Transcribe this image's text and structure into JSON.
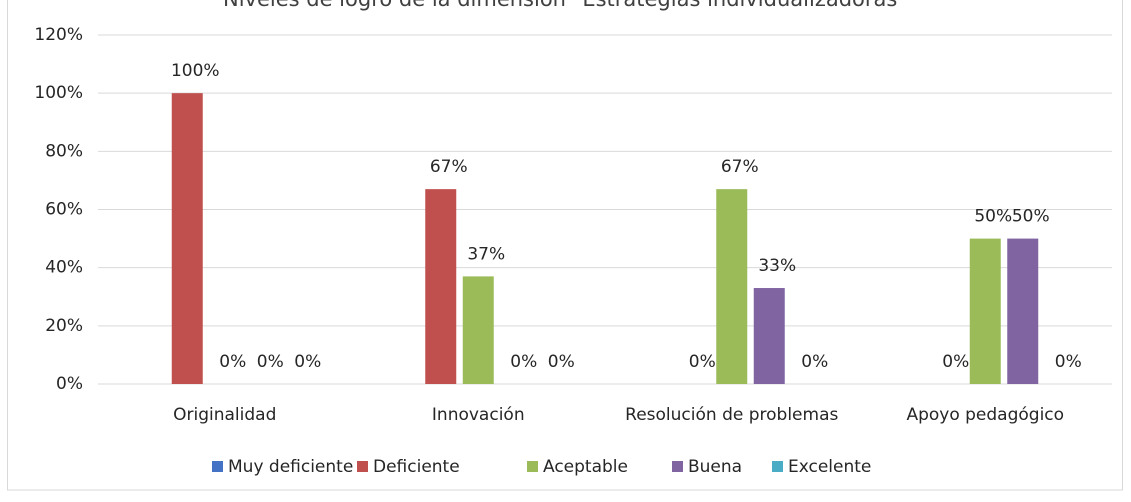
{
  "chart_data": {
    "type": "bar",
    "title": "Niveles de logro de la dimensión \"Estrategias individualizadoras\"",
    "categories": [
      "Originalidad",
      "Innovación",
      "Resolución de problemas",
      "Apoyo pedagógico"
    ],
    "series": [
      {
        "name": "Muy deficiente",
        "color": "#4472c4",
        "values": [
          null,
          null,
          null,
          null
        ],
        "value_labels": [
          null,
          null,
          null,
          null
        ]
      },
      {
        "name": "Deficiente",
        "color": "#c0504d",
        "values": [
          100,
          67,
          0,
          0
        ],
        "value_labels": [
          "100%",
          "67%",
          "0%",
          "0%"
        ]
      },
      {
        "name": "Aceptable",
        "color": "#9bbb59",
        "values": [
          0,
          37,
          67,
          50
        ],
        "value_labels": [
          "0%",
          "37%",
          "67%",
          "50%"
        ]
      },
      {
        "name": "Buena",
        "color": "#8064a2",
        "values": [
          0,
          0,
          33,
          50
        ],
        "value_labels": [
          "0%",
          "0%",
          "33%",
          "50%"
        ]
      },
      {
        "name": "Excelente",
        "color": "#4bacc6",
        "values": [
          0,
          0,
          0,
          0
        ],
        "value_labels": [
          "0%",
          "0%",
          "0%",
          "0%"
        ]
      }
    ],
    "ylim": [
      0,
      120
    ],
    "yticks": [
      {
        "value": 0,
        "label": "0%"
      },
      {
        "value": 20,
        "label": "20%"
      },
      {
        "value": 40,
        "label": "40%"
      },
      {
        "value": 60,
        "label": "60%"
      },
      {
        "value": 80,
        "label": "80%"
      },
      {
        "value": 100,
        "label": "100%"
      },
      {
        "value": 120,
        "label": "120%"
      }
    ],
    "grid": true,
    "legend": "bottom"
  }
}
